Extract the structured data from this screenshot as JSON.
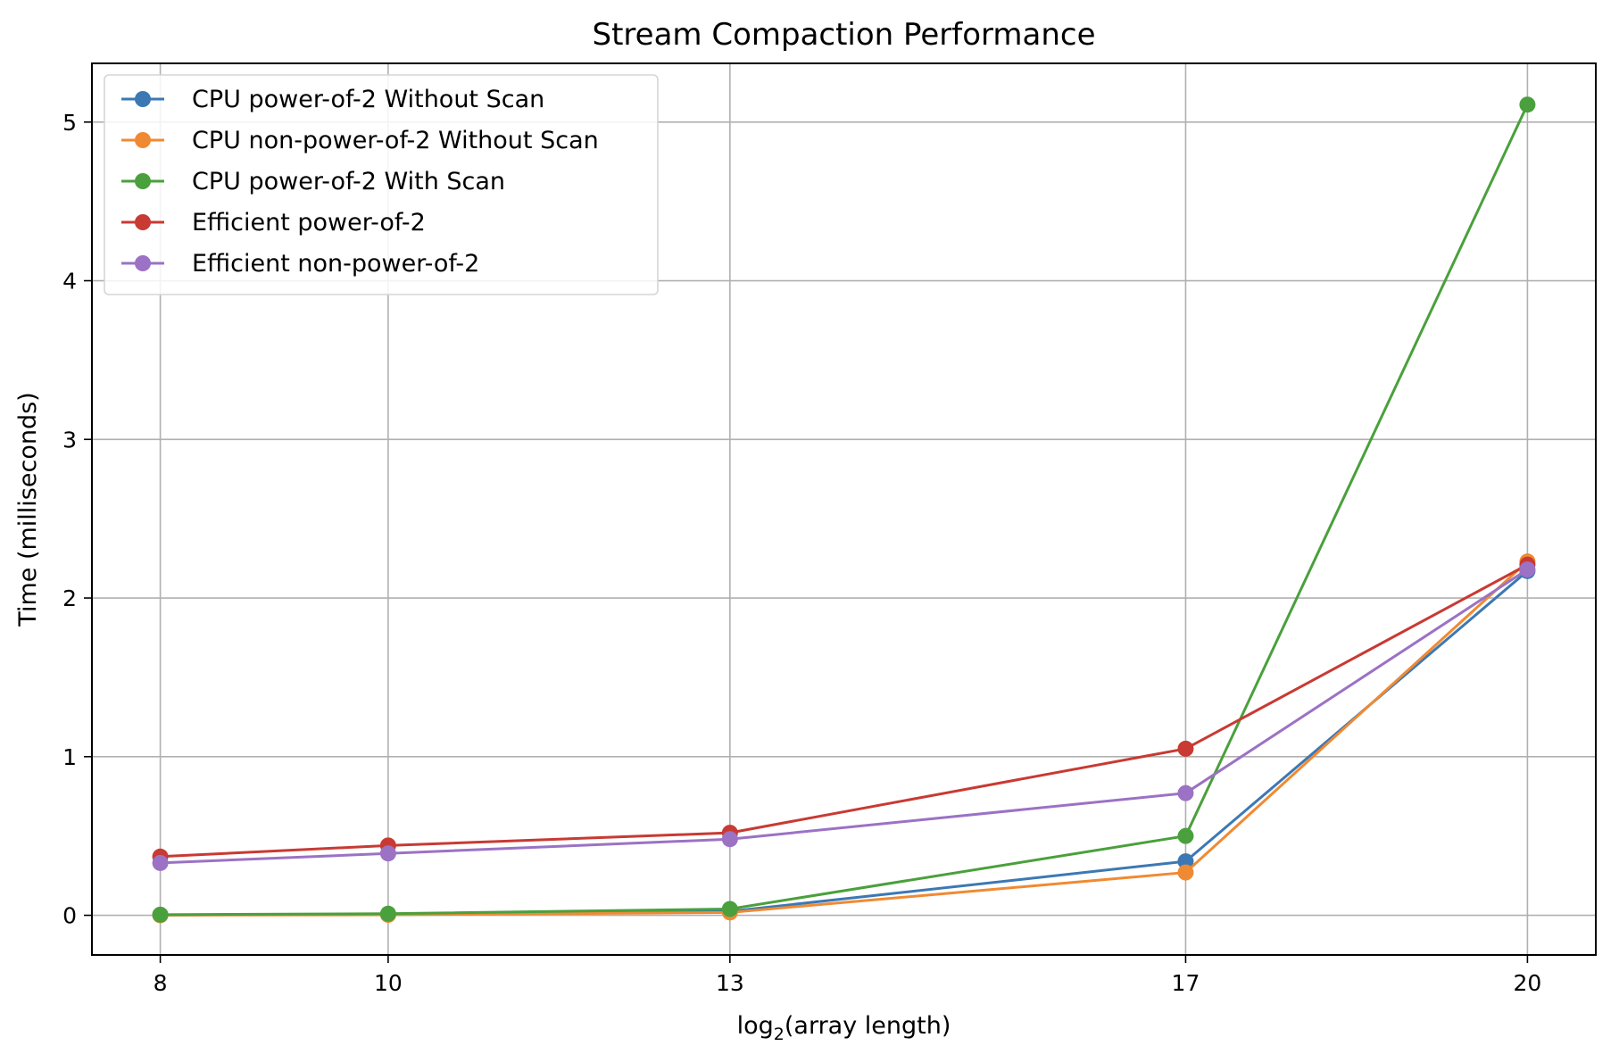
{
  "chart_data": {
    "type": "line",
    "title": "Stream Compaction Performance",
    "xlabel_pre": "log",
    "xlabel_sub": "2",
    "xlabel_post": "(array length)",
    "ylabel": "Time (milliseconds)",
    "x": [
      8,
      10,
      13,
      17,
      20
    ],
    "xticks": [
      "8",
      "10",
      "13",
      "17",
      "20"
    ],
    "yticks": [
      "0",
      "1",
      "2",
      "3",
      "4",
      "5"
    ],
    "xlim": [
      7.4,
      20.6
    ],
    "ylim": [
      -0.25,
      5.37
    ],
    "grid": true,
    "legend_position": "upper-left",
    "series": [
      {
        "name": "CPU power-of-2 Without Scan",
        "color": "#3c78b4",
        "values": [
          0.002,
          0.006,
          0.025,
          0.34,
          2.17
        ]
      },
      {
        "name": "CPU non-power-of-2 Without Scan",
        "color": "#f08a32",
        "values": [
          0.001,
          0.003,
          0.018,
          0.27,
          2.23
        ]
      },
      {
        "name": "CPU power-of-2 With Scan",
        "color": "#4aa03c",
        "values": [
          0.004,
          0.01,
          0.04,
          0.5,
          5.11
        ]
      },
      {
        "name": "Efficient power-of-2",
        "color": "#c83a33",
        "values": [
          0.37,
          0.44,
          0.52,
          1.05,
          2.21
        ]
      },
      {
        "name": "Efficient non-power-of-2",
        "color": "#9b72c4",
        "values": [
          0.33,
          0.39,
          0.48,
          0.77,
          2.18
        ]
      }
    ]
  }
}
